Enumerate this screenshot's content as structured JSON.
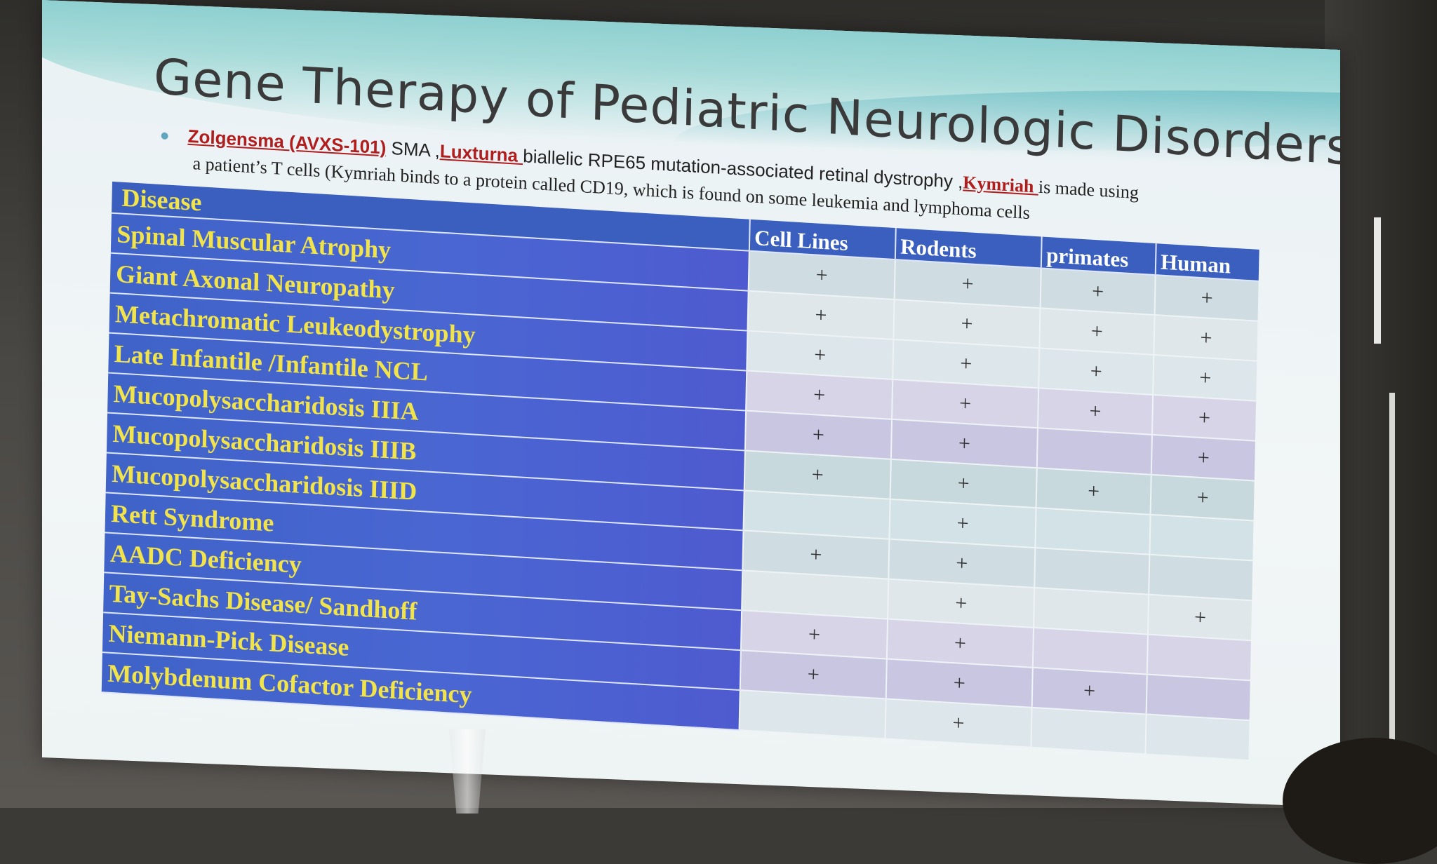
{
  "slide": {
    "title": "Gene Therapy of Pediatric Neurologic Disorders",
    "bullet": {
      "zolgensma": "Zolgensma (AVXS-101)",
      "sma_text": " SMA ,",
      "luxturna": "Luxturna ",
      "luxturna_text": " biallelic RPE65 mutation-associated retinal dystrophy ,",
      "kymriah": "Kymriah ",
      "kymriah_text": "is made using"
    },
    "sub_line": "a patient’s T cells (Kymriah binds to a protein called CD19, which is found on some leukemia and lymphoma cells",
    "table": {
      "disease_header": "Disease",
      "columns": [
        "Cell Lines",
        "Rodents",
        "primates",
        "Human"
      ],
      "rows": [
        {
          "disease": "Spinal Muscular Atrophy",
          "cells": [
            "+",
            "+",
            "+",
            "+"
          ]
        },
        {
          "disease": "Giant Axonal Neuropathy",
          "cells": [
            "+",
            "+",
            "+",
            "+"
          ]
        },
        {
          "disease": "Metachromatic Leukeodystrophy",
          "cells": [
            "+",
            "+",
            "+",
            "+"
          ]
        },
        {
          "disease": "Late Infantile /Infantile  NCL",
          "cells": [
            "+",
            "+",
            "+",
            "+"
          ]
        },
        {
          "disease": "Mucopolysaccharidosis IIIA",
          "cells": [
            "+",
            "+",
            "",
            "+"
          ]
        },
        {
          "disease": "Mucopolysaccharidosis IIIB",
          "cells": [
            "+",
            "+",
            "+",
            "+"
          ]
        },
        {
          "disease": "Mucopolysaccharidosis IIID",
          "cells": [
            "",
            "+",
            "",
            ""
          ]
        },
        {
          "disease": "Rett Syndrome",
          "cells": [
            "+",
            "+",
            "",
            ""
          ]
        },
        {
          "disease": "AADC Deficiency",
          "cells": [
            "",
            "+",
            "",
            "+"
          ]
        },
        {
          "disease": "Tay-Sachs Disease/ Sandhoff",
          "cells": [
            "+",
            "+",
            "",
            ""
          ]
        },
        {
          "disease": "Niemann-Pick Disease",
          "cells": [
            "+",
            "+",
            "+",
            ""
          ]
        },
        {
          "disease": "Molybdenum Cofactor Deficiency",
          "cells": [
            "",
            "+",
            "",
            ""
          ]
        }
      ]
    }
  }
}
